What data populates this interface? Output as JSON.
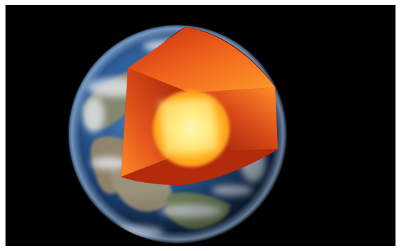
{
  "image": {
    "subject": "earth-core-cutaway",
    "colors": {
      "space": "#000000",
      "frame": "#ffffff",
      "ocean_deep": "#0b2a55",
      "ocean_light": "#3f74b0",
      "atmosphere": "#9cc4f0",
      "land": "#a89a78",
      "cloud": "#e9eef5",
      "core_center": "#fff7a0",
      "core_mid": "#ffb020",
      "mantle": "#f05a14",
      "crust_edge": "#8a1a0a"
    }
  }
}
